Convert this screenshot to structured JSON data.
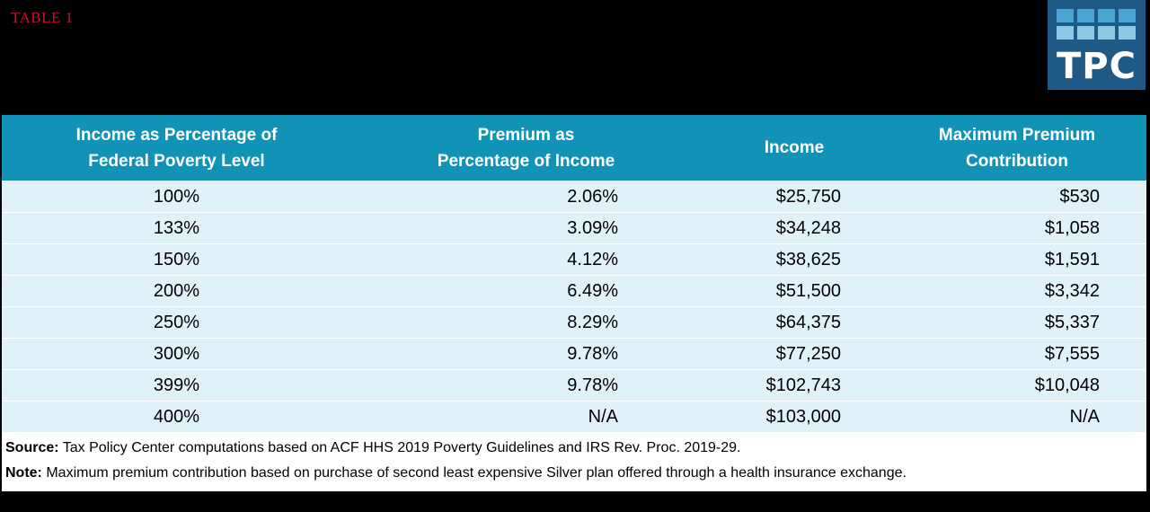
{
  "table_label": "TABLE 1",
  "logo": {
    "text": "TPC",
    "bg_color": "#1f5a86",
    "tile_colors": [
      "#4aa3d3",
      "#4aa3d3",
      "#4aa3d3",
      "#4aa3d3",
      "#8fc7e6",
      "#8fc7e6",
      "#8fc7e6",
      "#8fc7e6"
    ]
  },
  "colors": {
    "header_bg": "#1193b8",
    "row_bg": "#e1f1f8",
    "label": "#c8102e"
  },
  "table": {
    "headers": [
      "Income as Percentage of\nFederal Poverty Level",
      "Premium as\nPercentage of Income",
      "Income",
      "Maximum Premium\nContribution"
    ],
    "rows": [
      [
        "100%",
        "2.06%",
        "$25,750",
        "$530"
      ],
      [
        "133%",
        "3.09%",
        "$34,248",
        "$1,058"
      ],
      [
        "150%",
        "4.12%",
        "$38,625",
        "$1,591"
      ],
      [
        "200%",
        "6.49%",
        "$51,500",
        "$3,342"
      ],
      [
        "250%",
        "8.29%",
        "$64,375",
        "$5,337"
      ],
      [
        "300%",
        "9.78%",
        "$77,250",
        "$7,555"
      ],
      [
        "399%",
        "9.78%",
        "$102,743",
        "$10,048"
      ],
      [
        "400%",
        "N/A",
        "$103,000",
        "N/A"
      ]
    ]
  },
  "notes": {
    "source_label": "Source:",
    "source_text": " Tax Policy Center computations based on ACF HHS 2019 Poverty Guidelines and IRS Rev. Proc. 2019-29.",
    "note_label": "Note:",
    "note_text": " Maximum premium contribution based on purchase of second least expensive Silver plan offered through a health insurance exchange."
  }
}
